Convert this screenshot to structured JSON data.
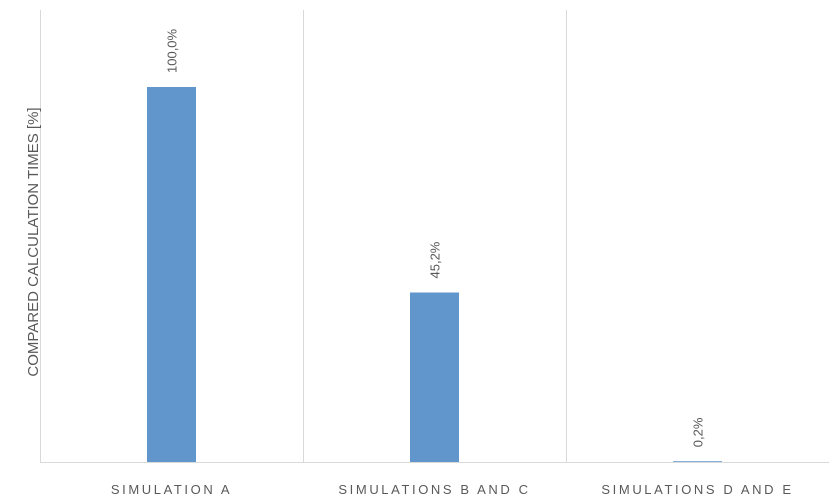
{
  "chart_data": {
    "type": "bar",
    "title": "",
    "xlabel": "",
    "ylabel": "COMPARED CALCULATION TIMES [%]",
    "categories": [
      "SIMULATION A",
      "SIMULATIONS B AND C",
      "SIMULATIONS D AND E"
    ],
    "values": [
      100.0,
      45.2,
      0.2
    ],
    "data_labels": [
      "100,0%",
      "45,2%",
      "0,2%"
    ],
    "ylim": [
      0,
      100
    ],
    "grid": false,
    "legend": "none",
    "colors": {
      "bar": "#6096CB",
      "divider": "#D9D9D9",
      "text": "#595959"
    }
  }
}
